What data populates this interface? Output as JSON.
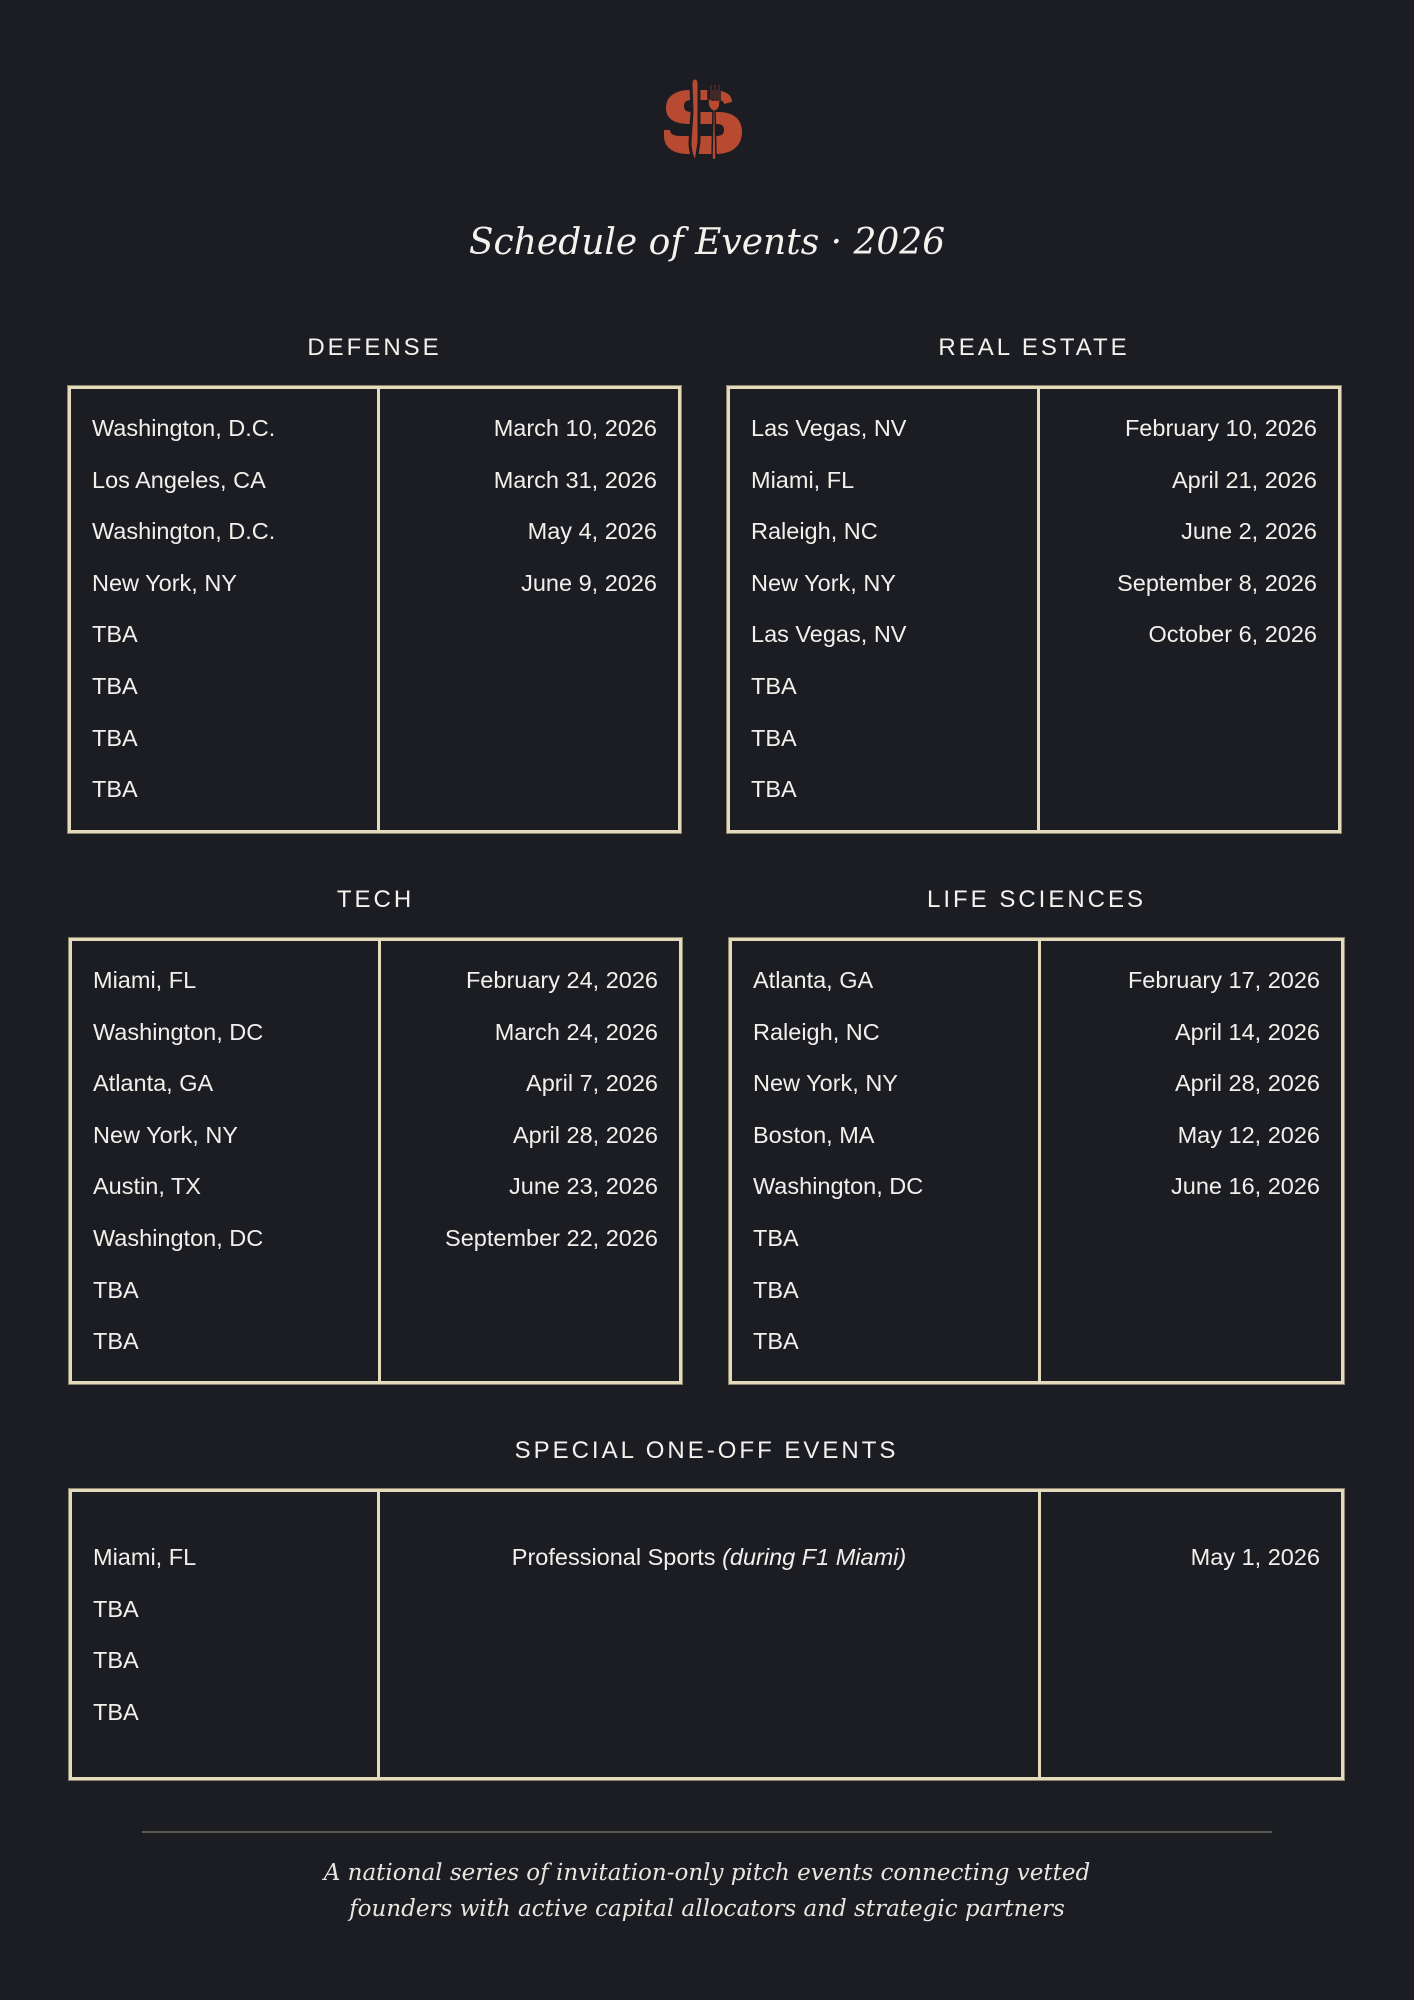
{
  "brand_color": "#b84a32",
  "logo_icon": "dollar-sign-with-knife-and-fork-logo",
  "title": "Schedule of Events · 2026",
  "sections": {
    "defense": {
      "heading": "DEFENSE",
      "rows": [
        {
          "location": "Washington, D.C.",
          "date": "March 10, 2026"
        },
        {
          "location": "Los Angeles, CA",
          "date": "March 31, 2026"
        },
        {
          "location": "Washington, D.C.",
          "date": "May 4, 2026"
        },
        {
          "location": "New York, NY",
          "date": "June 9, 2026"
        },
        {
          "location": "TBA",
          "date": ""
        },
        {
          "location": "TBA",
          "date": ""
        },
        {
          "location": "TBA",
          "date": ""
        },
        {
          "location": "TBA",
          "date": ""
        }
      ]
    },
    "real_estate": {
      "heading": "REAL ESTATE",
      "rows": [
        {
          "location": "Las Vegas, NV",
          "date": "February 10, 2026"
        },
        {
          "location": "Miami, FL",
          "date": "April 21, 2026"
        },
        {
          "location": "Raleigh, NC",
          "date": "June 2, 2026"
        },
        {
          "location": "New York, NY",
          "date": "September 8, 2026"
        },
        {
          "location": "Las Vegas, NV",
          "date": "October 6, 2026"
        },
        {
          "location": "TBA",
          "date": ""
        },
        {
          "location": "TBA",
          "date": ""
        },
        {
          "location": "TBA",
          "date": ""
        }
      ]
    },
    "tech": {
      "heading": "TECH",
      "rows": [
        {
          "location": "Miami, FL",
          "date": "February 24, 2026"
        },
        {
          "location": "Washington, DC",
          "date": "March 24, 2026"
        },
        {
          "location": "Atlanta, GA",
          "date": "April 7, 2026"
        },
        {
          "location": "New York, NY",
          "date": "April 28, 2026"
        },
        {
          "location": "Austin, TX",
          "date": "June 23, 2026"
        },
        {
          "location": "Washington, DC",
          "date": "September 22, 2026"
        },
        {
          "location": "TBA",
          "date": ""
        },
        {
          "location": "TBA",
          "date": ""
        }
      ]
    },
    "life_sciences": {
      "heading": "LIFE SCIENCES",
      "rows": [
        {
          "location": "Atlanta, GA",
          "date": "February 17, 2026"
        },
        {
          "location": "Raleigh, NC",
          "date": "April 14, 2026"
        },
        {
          "location": "New York, NY",
          "date": "April 28, 2026"
        },
        {
          "location": "Boston, MA",
          "date": "May 12, 2026"
        },
        {
          "location": "Washington, DC",
          "date": "June 16, 2026"
        },
        {
          "location": "TBA",
          "date": ""
        },
        {
          "location": "TBA",
          "date": ""
        },
        {
          "location": "TBA",
          "date": ""
        }
      ]
    },
    "special": {
      "heading": "SPECIAL ONE-OFF EVENTS",
      "rows": [
        {
          "location": "Miami, FL",
          "event": "Professional Sports",
          "event_note": "(during F1 Miami)",
          "date": "May 1, 2026"
        },
        {
          "location": "TBA",
          "event": "",
          "event_note": "",
          "date": ""
        },
        {
          "location": "TBA",
          "event": "",
          "event_note": "",
          "date": ""
        },
        {
          "location": "TBA",
          "event": "",
          "event_note": "",
          "date": ""
        }
      ]
    }
  },
  "footer": {
    "line1": "A national series of invitation-only pitch events connecting vetted",
    "line2": "founders with active capital allocators and strategic partners"
  }
}
